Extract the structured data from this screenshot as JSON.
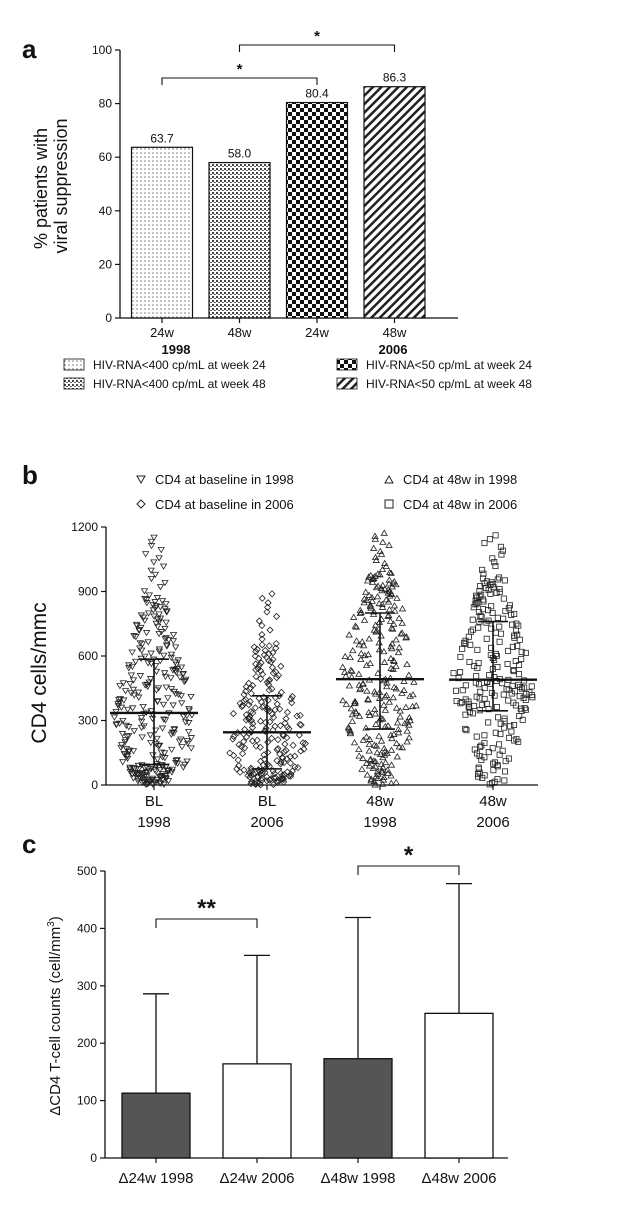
{
  "chart_data": [
    {
      "type": "bar",
      "panel": "a",
      "ylabel": "% patients with viral suppression",
      "ylabel_lines": [
        "% patients with",
        "viral suppression"
      ],
      "ylim": [
        0,
        100
      ],
      "yticks": [
        0,
        20,
        40,
        60,
        80,
        100
      ],
      "categories": [
        "24w",
        "48w",
        "24w",
        "48w"
      ],
      "groups": [
        "1998",
        "2006"
      ],
      "values": [
        63.7,
        58.0,
        80.4,
        86.3
      ],
      "value_labels": [
        "63.7",
        "58.0",
        "80.4",
        "86.3"
      ],
      "legend": [
        "HIV-RNA<400 cp/mL at week 24",
        "HIV-RNA<50 cp/mL at week 24",
        "HIV-RNA<400 cp/mL at week 48",
        "HIV-RNA<50 cp/mL at week 48"
      ],
      "significance": [
        {
          "from": 0,
          "to": 2,
          "label": "*"
        },
        {
          "from": 1,
          "to": 3,
          "label": "*"
        }
      ]
    },
    {
      "type": "scatter",
      "panel": "b",
      "ylabel": "CD4 cells/mmc",
      "ylim": [
        0,
        1200
      ],
      "yticks": [
        0,
        300,
        600,
        900,
        1200
      ],
      "categories": [
        {
          "line1": "BL",
          "line2": "1998"
        },
        {
          "line1": "BL",
          "line2": "2006"
        },
        {
          "line1": "48w",
          "line2": "1998"
        },
        {
          "line1": "48w",
          "line2": "2006"
        }
      ],
      "legend": [
        "CD4 at baseline in 1998",
        "CD4 at 48w in 1998",
        "CD4 at baseline in 2006",
        "CD4 at 48w in 2006"
      ],
      "series": [
        {
          "name": "CD4 at baseline in 1998",
          "marker": "triangle-down",
          "median": 335,
          "q1": 95,
          "q3": 585,
          "n": 300,
          "max": 1160
        },
        {
          "name": "CD4 at baseline in 2006",
          "marker": "diamond",
          "median": 245,
          "q1": 75,
          "q3": 415,
          "n": 230,
          "max": 900
        },
        {
          "name": "CD4 at 48w in 1998",
          "marker": "triangle-up",
          "median": 492,
          "q1": 260,
          "q3": 800,
          "n": 270,
          "max": 1180
        },
        {
          "name": "CD4 at 48w in 2006",
          "marker": "square",
          "median": 490,
          "q1": 345,
          "q3": 760,
          "n": 230,
          "max": 1170
        }
      ]
    },
    {
      "type": "bar",
      "panel": "c",
      "ylabel": "ΔCD4 T-cell counts (cell/mm",
      "ylabel_sup": "3",
      "ylabel_end": ")",
      "ylim": [
        0,
        500
      ],
      "yticks": [
        0,
        100,
        200,
        300,
        400,
        500
      ],
      "categories": [
        "Δ24w 1998",
        "Δ24w  2006",
        "Δ48w 1998",
        "Δ48w 2006"
      ],
      "values": [
        113,
        164,
        173,
        252
      ],
      "error_upper": [
        286,
        353,
        419,
        478
      ],
      "fills": [
        "#555555",
        "#ffffff",
        "#555555",
        "#ffffff"
      ],
      "significance": [
        {
          "from": 0,
          "to": 1,
          "label": "**"
        },
        {
          "from": 2,
          "to": 3,
          "label": "*"
        }
      ]
    }
  ],
  "panel_labels": [
    "a",
    "b",
    "c"
  ],
  "colors": {
    "ink": "#111111",
    "dark_bar": "#555555",
    "marker": "#222222"
  }
}
